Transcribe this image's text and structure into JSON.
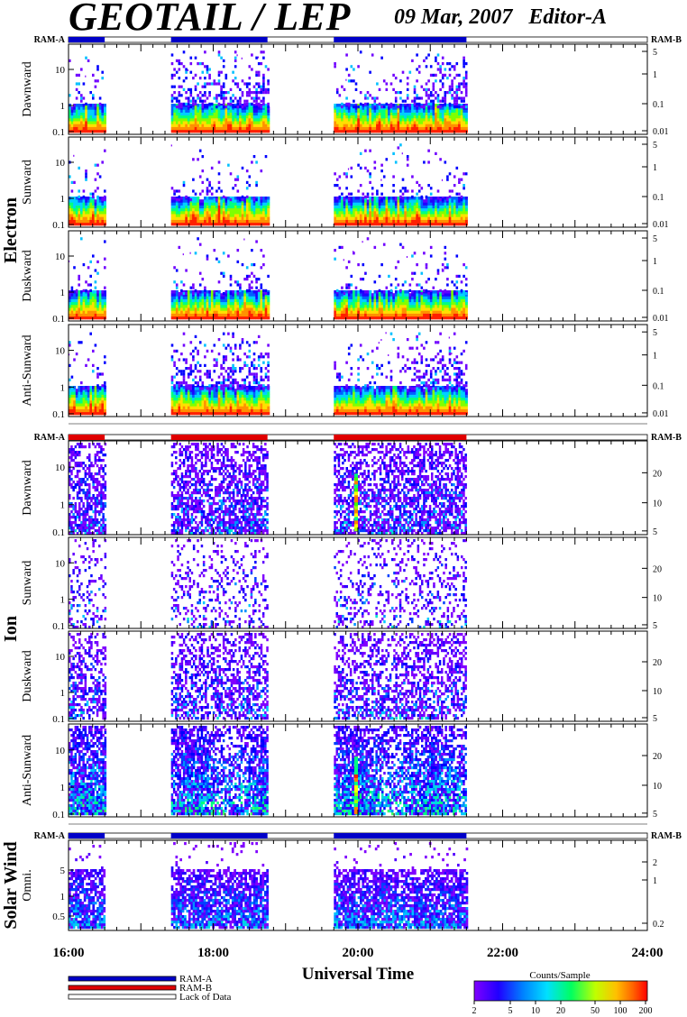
{
  "header": {
    "title": "GEOTAIL / LEP",
    "date": "09 Mar, 2007",
    "editor": "Editor-A"
  },
  "colors": {
    "ram_a": "#0000c8",
    "ram_b": "#e00000",
    "spectrum": [
      "#8000ff",
      "#0000ff",
      "#00c8ff",
      "#00ff80",
      "#80ff00",
      "#ffff00",
      "#ff8000",
      "#ff0000"
    ]
  },
  "chart_data": {
    "type": "heatmap",
    "xlabel": "Universal Time",
    "x_range": [
      "16:00",
      "24:00"
    ],
    "x_ticks": [
      "16:00",
      "18:00",
      "20:00",
      "22:00",
      "24:00"
    ],
    "mode_intervals": [
      {
        "start": "16:00",
        "end": "16:30"
      },
      {
        "start": "17:25",
        "end": "18:45"
      },
      {
        "start": "19:40",
        "end": "21:30"
      }
    ],
    "groups": [
      {
        "label": "Electron",
        "strip_label_left": "RAM-A",
        "strip_label_right": "RAM-B",
        "mode": "RAM-A",
        "left_ticks": [
          "10",
          "1",
          "0.1"
        ],
        "right_ticks": [
          "5",
          "1",
          "0.1",
          "0.01"
        ],
        "panels": [
          "Dawnward",
          "Sunward",
          "Duskward",
          "Anti-Sunward"
        ]
      },
      {
        "label": "Ion",
        "strip_label_left": "RAM-A",
        "strip_label_right": "RAM-B",
        "mode": "RAM-B",
        "left_ticks": [
          "10",
          "1",
          "0.1"
        ],
        "right_ticks": [
          "20",
          "10",
          "5"
        ],
        "panels": [
          "Dawnward",
          "Sunward",
          "Duskward",
          "Anti-Sunward"
        ]
      },
      {
        "label": "Solar Wind",
        "strip_label_left": "RAM-A",
        "strip_label_right": "RAM-B",
        "mode": "RAM-A",
        "left_ticks": [
          "5",
          "1",
          "0.5"
        ],
        "right_ticks": [
          "2",
          "1",
          "0.2"
        ],
        "panels": [
          "Omni."
        ]
      }
    ],
    "legend": {
      "entries": [
        {
          "label": "RAM-A",
          "color": "#0000c8"
        },
        {
          "label": "RAM-B",
          "color": "#e00000"
        },
        {
          "label": "Lack of Data",
          "color": "#ffffff"
        }
      ]
    },
    "colorbar": {
      "title": "Counts/Sample",
      "ticks": [
        "2",
        "5",
        "10",
        "20",
        "50",
        "100",
        "200"
      ]
    }
  }
}
